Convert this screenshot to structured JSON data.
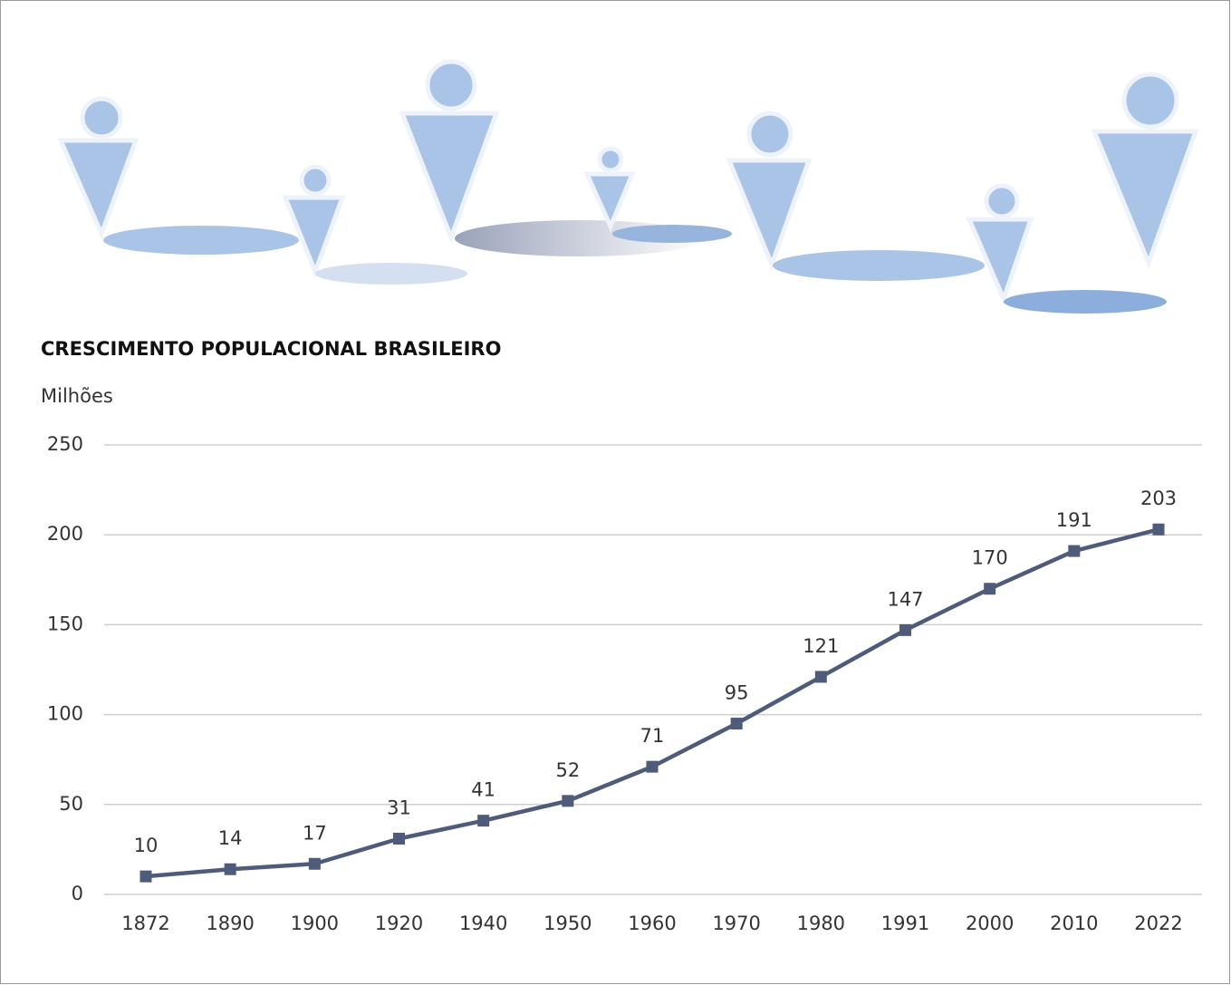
{
  "chart_data": {
    "type": "line",
    "title": "CRESCIMENTO POPULACIONAL BRASILEIRO",
    "y_label": "Milhões",
    "categories": [
      "1872",
      "1890",
      "1900",
      "1920",
      "1940",
      "1950",
      "1960",
      "1970",
      "1980",
      "1991",
      "2000",
      "2010",
      "2022"
    ],
    "values": [
      10,
      14,
      17,
      31,
      41,
      52,
      71,
      95,
      121,
      147,
      170,
      191,
      203
    ],
    "color": "#4f5b7a",
    "ylim": [
      0,
      250
    ],
    "yticks": [
      0,
      50,
      100,
      150,
      200,
      250
    ],
    "grid": true
  }
}
